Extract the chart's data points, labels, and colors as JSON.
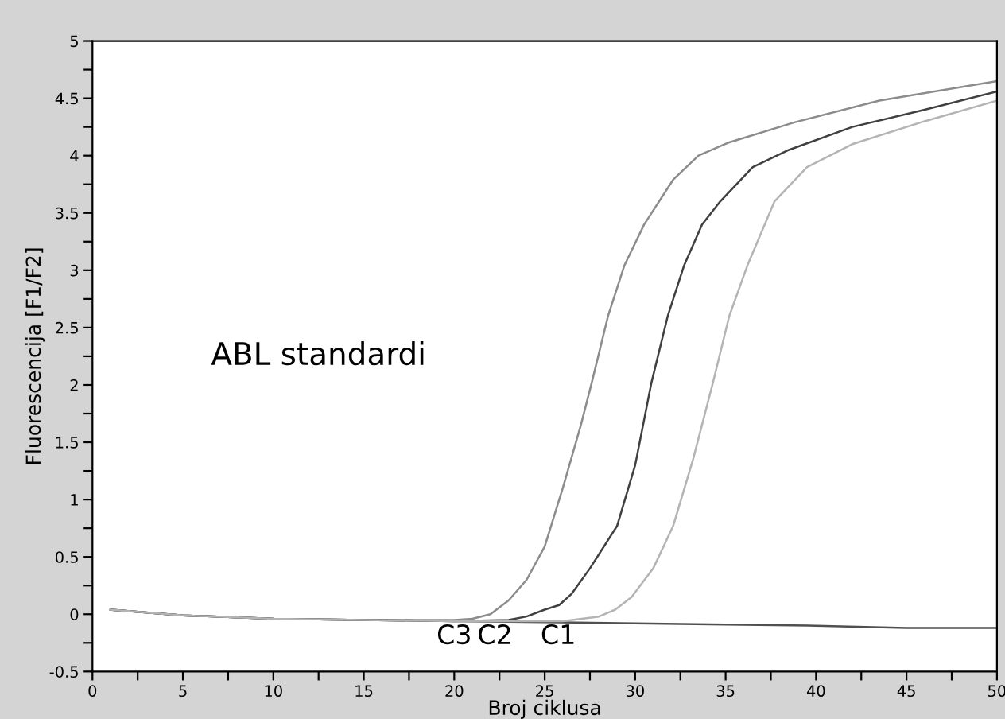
{
  "chart_data": {
    "type": "line",
    "xlabel": "Broj ciklusa",
    "ylabel": "Fluorescencija [F1/F2]",
    "annotations": [
      "ABL standardi",
      "C3",
      "C2",
      "C1"
    ],
    "xlim": [
      0,
      50
    ],
    "ylim": [
      -0.5,
      5
    ],
    "xticks": [
      0,
      {
        "value": 2.5,
        "label": null
      },
      5,
      {
        "value": 7.5,
        "label": null
      },
      10,
      {
        "value": 12.5,
        "label": null
      },
      15,
      {
        "value": 17.5,
        "label": null
      },
      20,
      {
        "value": 22.5,
        "label": null
      },
      25,
      {
        "value": 27.5,
        "label": null
      },
      30,
      {
        "value": 32.5,
        "label": null
      },
      35,
      {
        "value": 37.5,
        "label": null
      },
      40,
      {
        "value": 42.5,
        "label": null
      },
      45,
      {
        "value": 47.5,
        "label": null
      },
      50
    ],
    "yticks": [
      -0.5,
      {
        "value": -0.25,
        "label": null
      },
      0,
      {
        "value": 0.25,
        "label": null
      },
      0.5,
      {
        "value": 0.75,
        "label": null
      },
      1,
      {
        "value": 1.25,
        "label": null
      },
      1.5,
      {
        "value": 1.75,
        "label": null
      },
      2,
      {
        "value": 2.25,
        "label": null
      },
      2.5,
      {
        "value": 2.75,
        "label": null
      },
      3,
      {
        "value": 3.25,
        "label": null
      },
      3.5,
      {
        "value": 3.75,
        "label": null
      },
      4,
      {
        "value": 4.25,
        "label": null
      },
      4.5,
      {
        "value": 4.75,
        "label": null
      },
      5
    ],
    "grid": false,
    "legend": false,
    "marker": "none",
    "line_style": "solid",
    "series": [
      {
        "color": "#505050",
        "x": [
          1,
          5,
          10,
          15,
          20,
          25,
          30,
          35,
          40,
          45,
          50
        ],
        "values": [
          0.04,
          -0.01,
          -0.04,
          -0.05,
          -0.06,
          -0.07,
          -0.08,
          -0.09,
          -0.1,
          -0.12,
          -0.12
        ]
      },
      {
        "color": "#8c8c8c",
        "x": [
          1,
          5,
          10,
          15,
          20,
          21,
          22,
          23,
          24,
          25,
          26,
          27,
          27.6,
          28.5,
          29.4,
          30.5,
          32.1,
          33.5,
          35.1,
          38.8,
          43.5,
          50
        ],
        "values": [
          0.04,
          -0.01,
          -0.04,
          -0.05,
          -0.05,
          -0.04,
          0.0,
          0.12,
          0.3,
          0.59,
          1.1,
          1.65,
          2.02,
          2.6,
          3.04,
          3.4,
          3.79,
          4.0,
          4.11,
          4.29,
          4.48,
          4.65
        ]
      },
      {
        "color": "#404040",
        "x": [
          1,
          5,
          10,
          15,
          20,
          23,
          24,
          25,
          25.8,
          26.5,
          27.5,
          29,
          30,
          30.9,
          31.8,
          32.7,
          33.7,
          34.7,
          36.5,
          38.5,
          42,
          46,
          50
        ],
        "values": [
          0.04,
          -0.01,
          -0.04,
          -0.05,
          -0.06,
          -0.05,
          -0.02,
          0.04,
          0.08,
          0.18,
          0.4,
          0.77,
          1.3,
          2.02,
          2.6,
          3.04,
          3.4,
          3.6,
          3.9,
          4.05,
          4.25,
          4.4,
          4.56
        ]
      },
      {
        "color": "#b4b4b4",
        "x": [
          1,
          5,
          10,
          15,
          20,
          26,
          28,
          28.9,
          29.8,
          31,
          32.1,
          33.2,
          34.3,
          35.2,
          36.2,
          37.7,
          39.5,
          42,
          46,
          50
        ],
        "values": [
          0.04,
          -0.01,
          -0.04,
          -0.05,
          -0.06,
          -0.06,
          -0.02,
          0.04,
          0.15,
          0.4,
          0.77,
          1.35,
          2.02,
          2.6,
          3.04,
          3.6,
          3.9,
          4.1,
          4.3,
          4.48
        ]
      }
    ]
  }
}
